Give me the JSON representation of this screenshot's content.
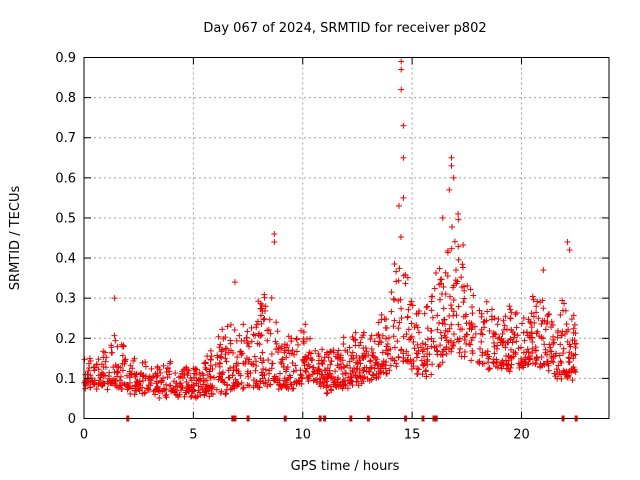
{
  "chart_data": {
    "type": "scatter",
    "title": "Day 067 of 2024, SRMTID for receiver p802",
    "xlabel": "GPS time / hours",
    "ylabel": "SRMTID / TECUs",
    "xlim": [
      0,
      24
    ],
    "ylim": [
      0,
      0.9
    ],
    "xticks": [
      0,
      5,
      10,
      15,
      20
    ],
    "yticks": [
      0,
      0.1,
      0.2,
      0.3,
      0.4,
      0.5,
      0.6,
      0.7,
      0.8,
      0.9
    ],
    "xtick_labels": [
      "0",
      "5",
      "10",
      "15",
      "20"
    ],
    "ytick_labels": [
      "0",
      "0.1",
      "0.2",
      "0.3",
      "0.4",
      "0.5",
      "0.6",
      "0.7",
      "0.8",
      "0.9"
    ],
    "grid": true,
    "marker": "+",
    "color": "#ee0000",
    "series": [
      {
        "name": "SRMTID",
        "envelope": {
          "description": "approximate time-varying band of scattered points (hours -> TECU)",
          "x": [
            0.0,
            0.5,
            1.0,
            1.5,
            2.0,
            2.5,
            3.0,
            3.5,
            4.0,
            4.5,
            5.0,
            5.5,
            6.0,
            6.5,
            7.0,
            7.5,
            8.0,
            8.5,
            9.0,
            9.5,
            10.0,
            10.5,
            11.0,
            11.5,
            12.0,
            12.5,
            13.0,
            13.5,
            14.0,
            14.5,
            15.0,
            15.5,
            16.0,
            16.5,
            17.0,
            17.5,
            18.0,
            18.5,
            19.0,
            19.5,
            20.0,
            20.5,
            21.0,
            21.5,
            22.0,
            22.5
          ],
          "low": [
            0.08,
            0.08,
            0.08,
            0.08,
            0.07,
            0.07,
            0.06,
            0.06,
            0.06,
            0.06,
            0.06,
            0.06,
            0.07,
            0.07,
            0.08,
            0.08,
            0.08,
            0.09,
            0.08,
            0.08,
            0.09,
            0.09,
            0.07,
            0.07,
            0.08,
            0.09,
            0.1,
            0.1,
            0.12,
            0.15,
            0.12,
            0.1,
            0.12,
            0.15,
            0.18,
            0.15,
            0.14,
            0.13,
            0.13,
            0.12,
            0.12,
            0.14,
            0.13,
            0.11,
            0.1,
            0.1
          ],
          "high": [
            0.16,
            0.14,
            0.18,
            0.22,
            0.16,
            0.15,
            0.13,
            0.14,
            0.14,
            0.13,
            0.13,
            0.14,
            0.2,
            0.24,
            0.22,
            0.24,
            0.3,
            0.34,
            0.18,
            0.22,
            0.24,
            0.2,
            0.16,
            0.18,
            0.2,
            0.22,
            0.24,
            0.26,
            0.32,
            0.5,
            0.3,
            0.26,
            0.38,
            0.4,
            0.55,
            0.38,
            0.3,
            0.28,
            0.26,
            0.28,
            0.28,
            0.3,
            0.3,
            0.24,
            0.36,
            0.22
          ]
        },
        "peaks": [
          {
            "x": 1.4,
            "y": 0.3
          },
          {
            "x": 6.9,
            "y": 0.34
          },
          {
            "x": 8.7,
            "y": 0.46
          },
          {
            "x": 8.7,
            "y": 0.44
          },
          {
            "x": 14.5,
            "y": 0.89
          },
          {
            "x": 14.5,
            "y": 0.87
          },
          {
            "x": 14.5,
            "y": 0.82
          },
          {
            "x": 14.6,
            "y": 0.73
          },
          {
            "x": 14.6,
            "y": 0.65
          },
          {
            "x": 14.6,
            "y": 0.55
          },
          {
            "x": 14.4,
            "y": 0.53
          },
          {
            "x": 16.8,
            "y": 0.65
          },
          {
            "x": 16.8,
            "y": 0.63
          },
          {
            "x": 16.9,
            "y": 0.6
          },
          {
            "x": 16.7,
            "y": 0.57
          },
          {
            "x": 16.4,
            "y": 0.5
          },
          {
            "x": 17.1,
            "y": 0.51
          },
          {
            "x": 21.0,
            "y": 0.37
          },
          {
            "x": 22.1,
            "y": 0.44
          },
          {
            "x": 22.2,
            "y": 0.42
          }
        ],
        "zero_markers_x": [
          2.0,
          6.8,
          6.9,
          7.5,
          9.2,
          10.8,
          11.0,
          12.2,
          13.0,
          14.7,
          15.5,
          16.0,
          16.1,
          21.9,
          22.5
        ]
      }
    ]
  }
}
